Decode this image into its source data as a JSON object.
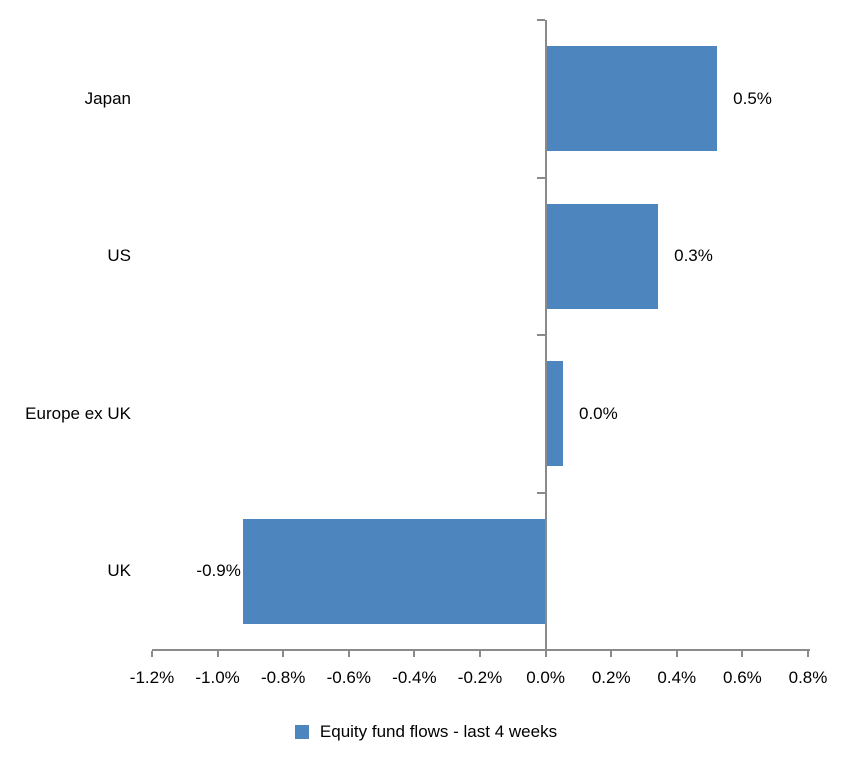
{
  "colors": {
    "bar": "#4D86BE",
    "axis": "#8A8A8A",
    "text": "#000000",
    "background": "#FFFFFF"
  },
  "chart_data": {
    "type": "bar",
    "orientation": "horizontal",
    "title": "",
    "xlabel": "",
    "ylabel": "",
    "categories": [
      "Japan",
      "US",
      "Europe ex UK",
      "UK"
    ],
    "values": [
      0.5,
      0.3,
      0.0,
      -0.9
    ],
    "value_labels": [
      "0.5%",
      "0.3%",
      "0.0%",
      "-0.9%"
    ],
    "bar_values_precise": [
      0.52,
      0.34,
      0.05,
      -0.92
    ],
    "series_name": "Equity fund flows - last 4 weeks",
    "unit": "%",
    "xlim": [
      -1.2,
      0.8
    ],
    "x_ticks": [
      -1.2,
      -1.0,
      -0.8,
      -0.6,
      -0.4,
      -0.2,
      0.0,
      0.2,
      0.4,
      0.6,
      0.8
    ],
    "x_tick_labels": [
      "-1.2%",
      "-1.0%",
      "-0.8%",
      "-0.6%",
      "-0.4%",
      "-0.2%",
      "0.0%",
      "0.2%",
      "0.4%",
      "0.6%",
      "0.8%"
    ],
    "grid": false,
    "legend_position": "bottom"
  }
}
